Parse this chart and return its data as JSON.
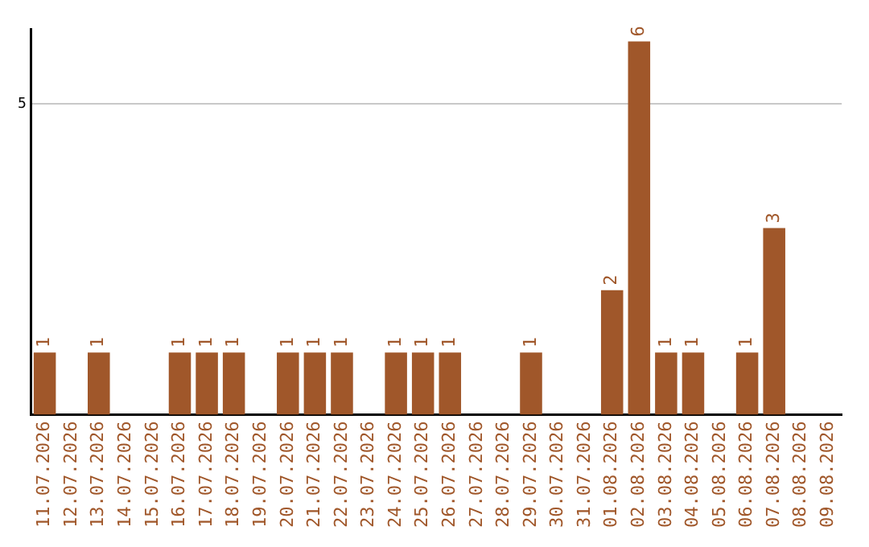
{
  "chart_data": {
    "type": "bar",
    "categories": [
      "11.07.2026",
      "12.07.2026",
      "13.07.2026",
      "14.07.2026",
      "15.07.2026",
      "16.07.2026",
      "17.07.2026",
      "18.07.2026",
      "19.07.2026",
      "20.07.2026",
      "21.07.2026",
      "22.07.2026",
      "23.07.2026",
      "24.07.2026",
      "25.07.2026",
      "26.07.2026",
      "27.07.2026",
      "28.07.2026",
      "29.07.2026",
      "30.07.2026",
      "31.07.2026",
      "01.08.2026",
      "02.08.2026",
      "03.08.2026",
      "04.08.2026",
      "05.08.2026",
      "06.08.2026",
      "07.08.2026",
      "08.08.2026",
      "09.08.2026"
    ],
    "values": [
      1,
      0,
      1,
      0,
      0,
      1,
      1,
      1,
      0,
      1,
      1,
      1,
      0,
      1,
      1,
      1,
      0,
      0,
      1,
      0,
      0,
      2,
      6,
      1,
      1,
      0,
      1,
      3,
      0,
      0
    ],
    "value_labels": [
      "1",
      null,
      "1",
      null,
      null,
      "1",
      "1",
      "1",
      null,
      "1",
      "1",
      "1",
      null,
      "1",
      "1",
      "1",
      null,
      null,
      "1",
      null,
      null,
      "2",
      "6",
      "1",
      "1",
      null,
      "1",
      "3",
      null,
      null
    ],
    "color": "#a0572a",
    "ylim": [
      0,
      6.2
    ],
    "yticks": [
      5
    ],
    "grid": "y",
    "legend": false
  }
}
